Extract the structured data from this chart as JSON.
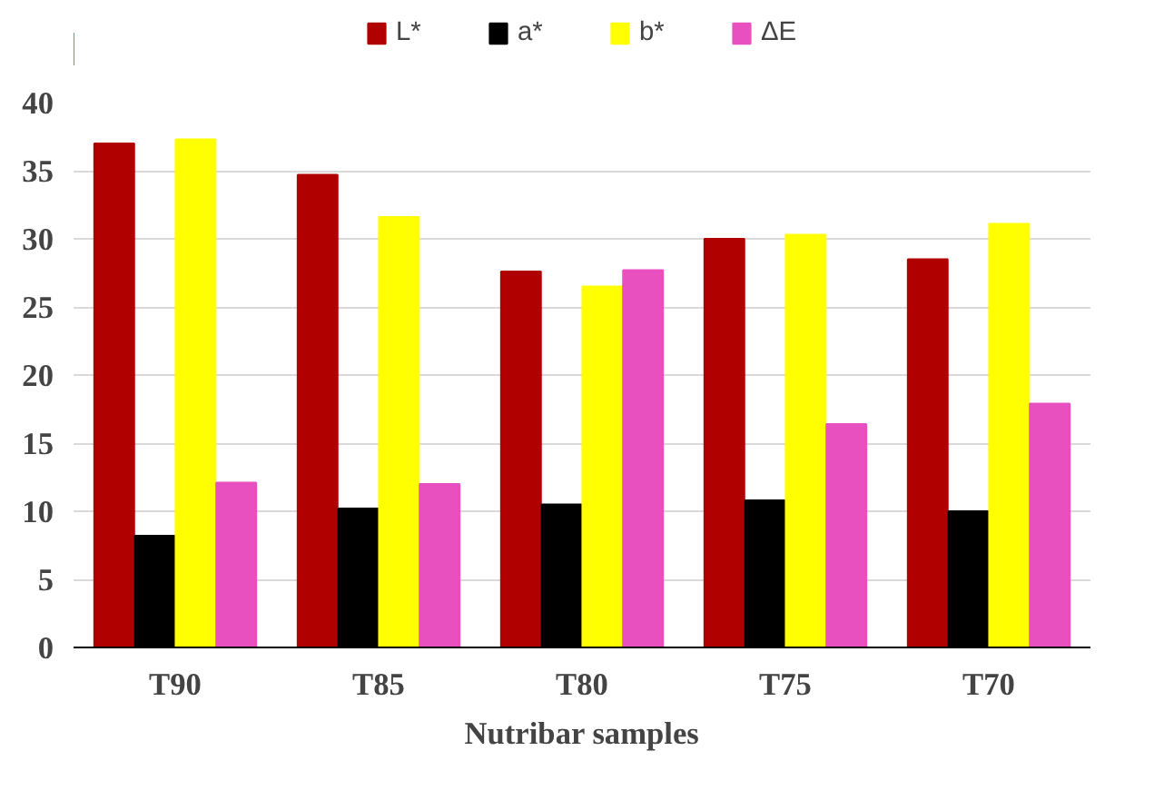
{
  "chart_data": {
    "type": "bar",
    "xlabel": "Nutribar samples",
    "categories": [
      "T90",
      "T85",
      "T80",
      "T75",
      "T70"
    ],
    "series": [
      {
        "name": "L*",
        "color": "#b00000",
        "values": [
          37.0,
          34.7,
          27.6,
          30.0,
          28.5
        ]
      },
      {
        "name": "a*",
        "color": "#000000",
        "values": [
          8.2,
          10.2,
          10.5,
          10.8,
          10.0
        ]
      },
      {
        "name": "b*",
        "color": "#ffff00",
        "values": [
          37.3,
          31.6,
          26.5,
          30.3,
          31.1
        ]
      },
      {
        "name": "ΔE",
        "color": "#e84fbf",
        "values": [
          12.1,
          12.0,
          27.7,
          16.4,
          17.9
        ]
      }
    ],
    "ylim": [
      0,
      40
    ],
    "yticks": [
      0,
      5,
      10,
      15,
      20,
      25,
      30,
      35,
      40
    ],
    "grid": "y",
    "legend": "top"
  }
}
